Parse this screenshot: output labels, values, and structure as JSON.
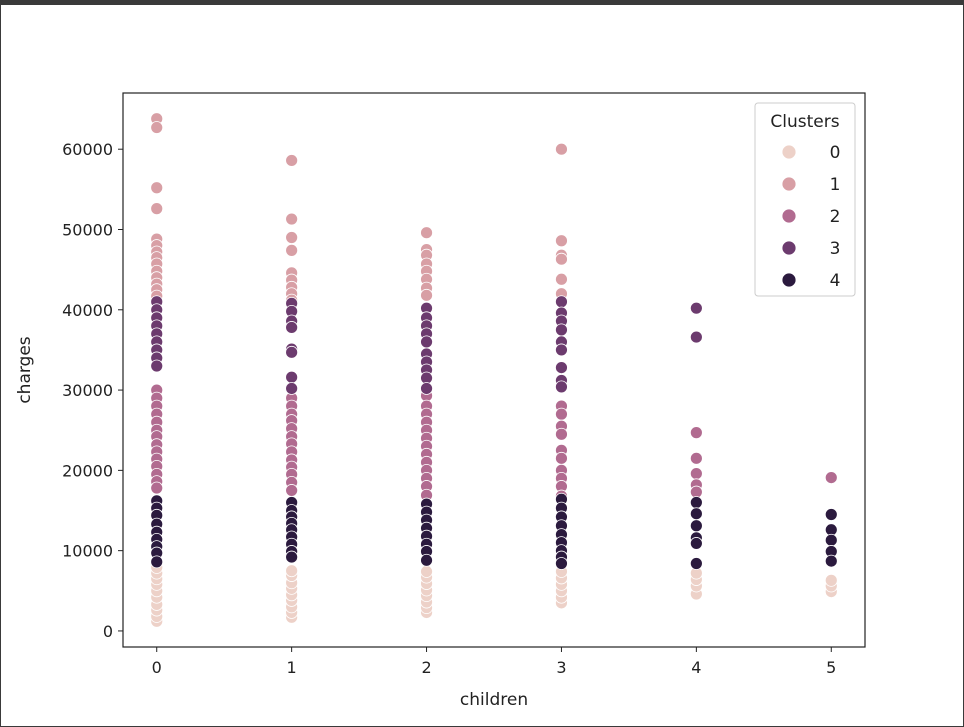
{
  "chart_data": {
    "type": "scatter",
    "title": "",
    "xlabel": "children",
    "ylabel": "charges",
    "xlim": [
      -0.25,
      5.25
    ],
    "ylim": [
      -2000,
      67000
    ],
    "xticks": [
      0,
      1,
      2,
      3,
      4,
      5
    ],
    "yticks": [
      0,
      10000,
      20000,
      30000,
      40000,
      50000,
      60000
    ],
    "grid": false,
    "legend": {
      "title": "Clusters",
      "position": "top-right"
    },
    "series": [
      {
        "name": "0",
        "color": "#edd1c8",
        "points": [
          [
            0,
            1200
          ],
          [
            0,
            1800
          ],
          [
            0,
            2600
          ],
          [
            0,
            3300
          ],
          [
            0,
            4200
          ],
          [
            0,
            5000
          ],
          [
            0,
            5800
          ],
          [
            0,
            6500
          ],
          [
            0,
            7200
          ],
          [
            0,
            7900
          ],
          [
            1,
            1700
          ],
          [
            1,
            2300
          ],
          [
            1,
            3000
          ],
          [
            1,
            3800
          ],
          [
            1,
            4500
          ],
          [
            1,
            5300
          ],
          [
            1,
            6000
          ],
          [
            1,
            6900
          ],
          [
            1,
            7500
          ],
          [
            2,
            2300
          ],
          [
            2,
            2900
          ],
          [
            2,
            3600
          ],
          [
            2,
            4400
          ],
          [
            2,
            5100
          ],
          [
            2,
            5900
          ],
          [
            2,
            6700
          ],
          [
            2,
            7400
          ],
          [
            3,
            3500
          ],
          [
            3,
            4200
          ],
          [
            3,
            5000
          ],
          [
            3,
            5800
          ],
          [
            3,
            6600
          ],
          [
            3,
            7400
          ],
          [
            4,
            4600
          ],
          [
            4,
            5600
          ],
          [
            4,
            6400
          ],
          [
            4,
            7200
          ],
          [
            5,
            4900
          ],
          [
            5,
            5600
          ],
          [
            5,
            6300
          ]
        ]
      },
      {
        "name": "1",
        "color": "#d89fa5",
        "points": [
          [
            0,
            63800
          ],
          [
            0,
            62700
          ],
          [
            0,
            55200
          ],
          [
            0,
            52600
          ],
          [
            0,
            48800
          ],
          [
            0,
            48000
          ],
          [
            0,
            47200
          ],
          [
            0,
            46500
          ],
          [
            0,
            45700
          ],
          [
            0,
            44800
          ],
          [
            0,
            44000
          ],
          [
            0,
            43200
          ],
          [
            0,
            42500
          ],
          [
            0,
            41700
          ],
          [
            1,
            58600
          ],
          [
            1,
            51300
          ],
          [
            1,
            49000
          ],
          [
            1,
            47400
          ],
          [
            1,
            44600
          ],
          [
            1,
            43700
          ],
          [
            1,
            42800
          ],
          [
            1,
            42000
          ],
          [
            1,
            41200
          ],
          [
            2,
            49600
          ],
          [
            2,
            47500
          ],
          [
            2,
            46800
          ],
          [
            2,
            45700
          ],
          [
            2,
            44800
          ],
          [
            2,
            43800
          ],
          [
            2,
            42700
          ],
          [
            2,
            41800
          ],
          [
            3,
            60000
          ],
          [
            3,
            48600
          ],
          [
            3,
            46800
          ],
          [
            3,
            46300
          ],
          [
            3,
            43800
          ],
          [
            3,
            42000
          ]
        ]
      },
      {
        "name": "2",
        "color": "#b16b90",
        "points": [
          [
            0,
            30000
          ],
          [
            0,
            29000
          ],
          [
            0,
            28000
          ],
          [
            0,
            27000
          ],
          [
            0,
            26000
          ],
          [
            0,
            25000
          ],
          [
            0,
            24200
          ],
          [
            0,
            23200
          ],
          [
            0,
            22300
          ],
          [
            0,
            21400
          ],
          [
            0,
            20500
          ],
          [
            0,
            19500
          ],
          [
            0,
            18600
          ],
          [
            0,
            17800
          ],
          [
            1,
            29000
          ],
          [
            1,
            28000
          ],
          [
            1,
            27000
          ],
          [
            1,
            26200
          ],
          [
            1,
            25200
          ],
          [
            1,
            24200
          ],
          [
            1,
            23300
          ],
          [
            1,
            22300
          ],
          [
            1,
            21300
          ],
          [
            1,
            20400
          ],
          [
            1,
            19500
          ],
          [
            1,
            18500
          ],
          [
            1,
            17500
          ],
          [
            2,
            29300
          ],
          [
            2,
            28000
          ],
          [
            2,
            27000
          ],
          [
            2,
            26000
          ],
          [
            2,
            25000
          ],
          [
            2,
            24000
          ],
          [
            2,
            23000
          ],
          [
            2,
            22000
          ],
          [
            2,
            21000
          ],
          [
            2,
            20000
          ],
          [
            2,
            19000
          ],
          [
            2,
            18000
          ],
          [
            2,
            16900
          ],
          [
            3,
            28000
          ],
          [
            3,
            27000
          ],
          [
            3,
            25500
          ],
          [
            3,
            24500
          ],
          [
            3,
            22500
          ],
          [
            3,
            21500
          ],
          [
            3,
            20000
          ],
          [
            3,
            19000
          ],
          [
            3,
            18000
          ],
          [
            3,
            16800
          ],
          [
            4,
            24700
          ],
          [
            4,
            21500
          ],
          [
            4,
            19600
          ],
          [
            4,
            18200
          ],
          [
            4,
            17300
          ],
          [
            5,
            19100
          ]
        ]
      },
      {
        "name": "3",
        "color": "#6c3b6e",
        "points": [
          [
            0,
            41000
          ],
          [
            0,
            40000
          ],
          [
            0,
            39000
          ],
          [
            0,
            38000
          ],
          [
            0,
            37000
          ],
          [
            0,
            36000
          ],
          [
            0,
            35000
          ],
          [
            0,
            34000
          ],
          [
            0,
            33000
          ],
          [
            1,
            40800
          ],
          [
            1,
            39800
          ],
          [
            1,
            38600
          ],
          [
            1,
            37800
          ],
          [
            1,
            35100
          ],
          [
            1,
            34700
          ],
          [
            1,
            31600
          ],
          [
            1,
            30200
          ],
          [
            2,
            40200
          ],
          [
            2,
            39000
          ],
          [
            2,
            38000
          ],
          [
            2,
            37000
          ],
          [
            2,
            36000
          ],
          [
            2,
            34500
          ],
          [
            2,
            33500
          ],
          [
            2,
            32500
          ],
          [
            2,
            31500
          ],
          [
            2,
            30200
          ],
          [
            3,
            41000
          ],
          [
            3,
            39600
          ],
          [
            3,
            38600
          ],
          [
            3,
            37500
          ],
          [
            3,
            36000
          ],
          [
            3,
            35000
          ],
          [
            3,
            32800
          ],
          [
            3,
            31200
          ],
          [
            3,
            30400
          ],
          [
            4,
            40200
          ],
          [
            4,
            36600
          ]
        ]
      },
      {
        "name": "4",
        "color": "#2b1a3e",
        "points": [
          [
            0,
            16200
          ],
          [
            0,
            15300
          ],
          [
            0,
            14400
          ],
          [
            0,
            13300
          ],
          [
            0,
            12300
          ],
          [
            0,
            11400
          ],
          [
            0,
            10500
          ],
          [
            0,
            9700
          ],
          [
            0,
            8600
          ],
          [
            1,
            16000
          ],
          [
            1,
            15000
          ],
          [
            1,
            14200
          ],
          [
            1,
            13400
          ],
          [
            1,
            12600
          ],
          [
            1,
            11700
          ],
          [
            1,
            10800
          ],
          [
            1,
            9900
          ],
          [
            1,
            9200
          ],
          [
            2,
            15800
          ],
          [
            2,
            14800
          ],
          [
            2,
            13800
          ],
          [
            2,
            12800
          ],
          [
            2,
            11800
          ],
          [
            2,
            10800
          ],
          [
            2,
            9900
          ],
          [
            2,
            8800
          ],
          [
            3,
            16400
          ],
          [
            3,
            15300
          ],
          [
            3,
            14200
          ],
          [
            3,
            13100
          ],
          [
            3,
            12000
          ],
          [
            3,
            11000
          ],
          [
            3,
            10000
          ],
          [
            3,
            9200
          ],
          [
            3,
            8400
          ],
          [
            4,
            16000
          ],
          [
            4,
            14600
          ],
          [
            4,
            13100
          ],
          [
            4,
            11600
          ],
          [
            4,
            10900
          ],
          [
            4,
            8400
          ],
          [
            5,
            14500
          ],
          [
            5,
            12600
          ],
          [
            5,
            11300
          ],
          [
            5,
            9900
          ],
          [
            5,
            8700
          ]
        ]
      }
    ]
  }
}
